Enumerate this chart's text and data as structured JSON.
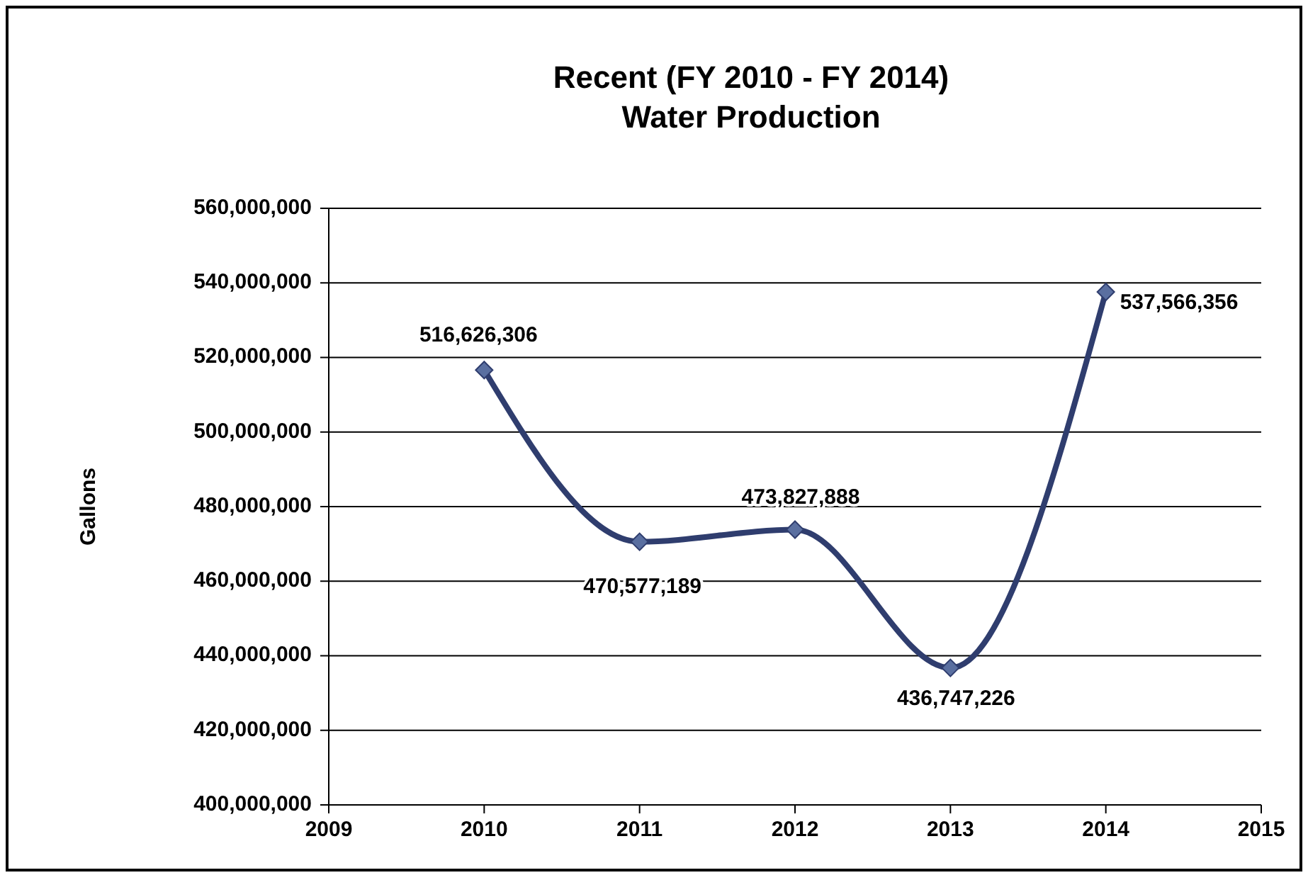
{
  "chart_data": {
    "type": "line",
    "title": "Recent (FY 2010 - FY 2014)\nWater Production",
    "ylabel": "Gallons",
    "x": [
      2010,
      2011,
      2012,
      2013,
      2014
    ],
    "series": [
      {
        "color": "#2f3d6e",
        "values": [
          516626306,
          470577189,
          473827888,
          436747226,
          537566356
        ],
        "value_labels": [
          "516,626,306",
          "470,577,189",
          "473,827,888",
          "436,747,226",
          "537,566,356"
        ]
      }
    ],
    "xlim": [
      2009,
      2015
    ],
    "xticks": [
      2009,
      2010,
      2011,
      2012,
      2013,
      2014,
      2015
    ],
    "ylim": [
      400000000,
      560000000
    ],
    "yticks": [
      {
        "value": 400000000,
        "label": "400,000,000"
      },
      {
        "value": 420000000,
        "label": "420,000,000"
      },
      {
        "value": 440000000,
        "label": "440,000,000"
      },
      {
        "value": 460000000,
        "label": "460,000,000"
      },
      {
        "value": 480000000,
        "label": "480,000,000"
      },
      {
        "value": 500000000,
        "label": "500,000,000"
      },
      {
        "value": 520000000,
        "label": "520,000,000"
      },
      {
        "value": 540000000,
        "label": "540,000,000"
      },
      {
        "value": 560000000,
        "label": "560,000,000"
      }
    ],
    "grid": "y",
    "marker": "diamond",
    "line_style": "solid"
  }
}
